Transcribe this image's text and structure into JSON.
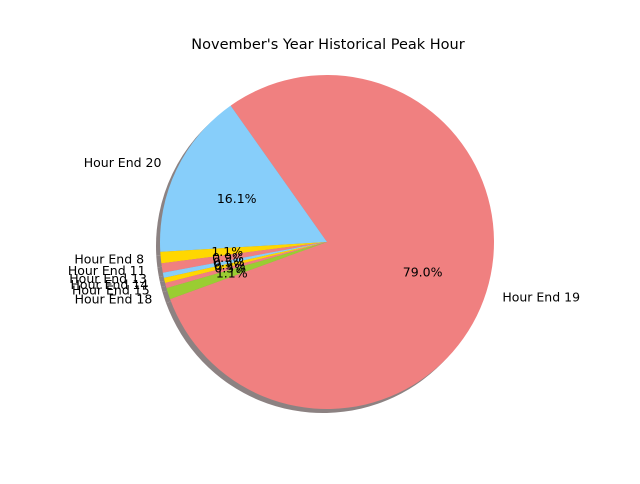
{
  "chart_data": {
    "type": "pie",
    "title": "November's Year Historical Peak Hour",
    "labels": [
      "Hour End 19",
      "Hour End 20",
      "Hour End 8",
      "Hour End 11",
      "Hour End 13",
      "Hour End 14",
      "Hour End 15",
      "Hour End 18"
    ],
    "values": [
      79.0,
      16.1,
      1.1,
      0.9,
      0.5,
      0.5,
      0.5,
      1.1
    ],
    "autopct_labels": [
      "79.0%",
      "16.1%",
      "1.1%",
      "0.9%",
      "0.5%",
      "0.5%",
      "0.5%",
      "1.1%"
    ],
    "colors": [
      "#F08080",
      "#87CEFA",
      "#FFD700",
      "#F08080",
      "#87CEFA",
      "#FFD700",
      "#F08080",
      "#9ACD32"
    ],
    "shadow": true,
    "legend": false
  }
}
